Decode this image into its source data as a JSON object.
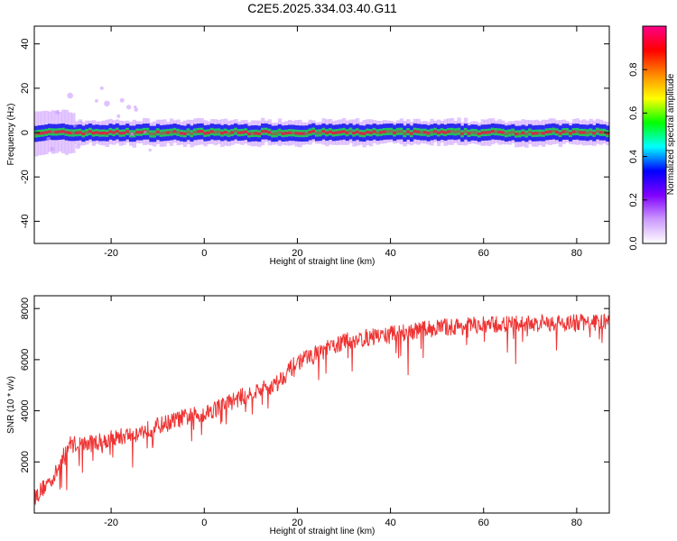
{
  "title": "C2E5.2025.334.03.40.G11",
  "colors": {
    "snr_line": "#ee3333",
    "band_core": "#dd2244",
    "band_mid": "#22cc55",
    "band_edge": "#2222ee",
    "band_halo": "#cc99ff",
    "axis": "#000000"
  },
  "chart_data": [
    {
      "type": "heatmap",
      "name": "spectrogram",
      "xlabel": "Height of straight line (km)",
      "ylabel": "Frequency (Hz)",
      "xlim": [
        -36.5,
        87
      ],
      "ylim": [
        -50,
        48
      ],
      "xticks": [
        -20,
        0,
        20,
        40,
        60,
        80
      ],
      "xtick_labels": [
        "-20",
        "0",
        "20",
        "40",
        "60",
        "80"
      ],
      "yticks": [
        40,
        20,
        0,
        -20,
        -40
      ],
      "ytick_labels": [
        "40",
        "20",
        "0",
        "-20",
        "-40"
      ],
      "band_center_hz": 0,
      "band_halfwidth_hz": 3,
      "colorbar": {
        "label": "Normalized spectral amplitude",
        "range": [
          0,
          1
        ],
        "ticks": [
          0.0,
          0.2,
          0.4,
          0.6,
          0.8
        ],
        "tick_labels": [
          "0.0",
          "0.2",
          "0.4",
          "0.6",
          "0.8"
        ],
        "colormap": [
          "#ffffff",
          "#cc99ff",
          "#8000ff",
          "#0000ff",
          "#00ffff",
          "#00ff00",
          "#ffff00",
          "#ff8800",
          "#ff0000",
          "#ff0088"
        ]
      }
    },
    {
      "type": "line",
      "name": "snr",
      "xlabel": "Height of straight line (km)",
      "ylabel": "SNR (10 * v/v)",
      "xlim": [
        -36.5,
        87
      ],
      "ylim": [
        0,
        8500
      ],
      "xticks": [
        -20,
        0,
        20,
        40,
        60,
        80
      ],
      "xtick_labels": [
        "-20",
        "0",
        "20",
        "40",
        "60",
        "80"
      ],
      "yticks": [
        2000,
        4000,
        6000,
        8000
      ],
      "ytick_labels": [
        "2000",
        "4000",
        "6000",
        "8000"
      ],
      "trend": {
        "x": [
          -36.5,
          -32,
          -29,
          -25,
          -20,
          -15,
          -10,
          -5,
          0,
          5,
          10,
          15,
          20,
          25,
          30,
          40,
          50,
          60,
          70,
          80,
          87
        ],
        "y": [
          600,
          1500,
          2700,
          2700,
          2900,
          3100,
          3400,
          3700,
          3900,
          4300,
          4700,
          5000,
          5900,
          6300,
          6700,
          7000,
          7250,
          7350,
          7400,
          7450,
          7450
        ]
      },
      "noise_amplitude": 350
    }
  ]
}
